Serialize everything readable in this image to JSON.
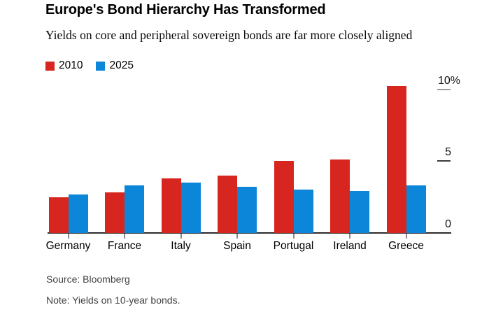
{
  "header": {
    "title": "Europe's Bond Hierarchy Has Transformed",
    "subtitle": "Yields on core and peripheral sovereign bonds are far more closely aligned"
  },
  "legend": [
    {
      "label": "2010",
      "color": "#d7261f"
    },
    {
      "label": "2025",
      "color": "#0c86d8"
    }
  ],
  "chart_data": {
    "type": "bar",
    "title": "Europe's Bond Hierarchy Has Transformed",
    "subtitle": "Yields on core and peripheral sovereign bonds are far more closely aligned",
    "categories": [
      "Germany",
      "France",
      "Italy",
      "Spain",
      "Portugal",
      "Ireland",
      "Greece"
    ],
    "series": [
      {
        "name": "2010",
        "color": "#d7261f",
        "values": [
          2.5,
          2.8,
          3.8,
          4.0,
          5.0,
          5.1,
          10.2
        ]
      },
      {
        "name": "2025",
        "color": "#0c86d8",
        "values": [
          2.7,
          3.3,
          3.5,
          3.2,
          3.0,
          2.9,
          3.3
        ]
      }
    ],
    "unit": "%",
    "xlabel": "",
    "ylabel": "",
    "ylim": [
      0,
      10
    ],
    "y_ticks": [
      {
        "label": "10%",
        "value": 10,
        "tick_style": "gray"
      },
      {
        "label": "5",
        "value": 5,
        "tick_style": "dark"
      },
      {
        "label": "0",
        "value": 0,
        "tick_style": "none"
      }
    ],
    "grid": false,
    "legend_position": "top-left"
  },
  "footer": {
    "source": "Source: Bloomberg",
    "note": "Note: Yields on 10-year bonds."
  },
  "colors": {
    "series_2010": "#d7261f",
    "series_2025": "#0c86d8",
    "axis_line": "#2b2b2b",
    "tick_gray": "#9b9b9b",
    "tick_dark": "#3c3c3c",
    "x_tick": "#8a8a8a",
    "footnote_text": "#3f3f3f",
    "background": "#ffffff"
  }
}
